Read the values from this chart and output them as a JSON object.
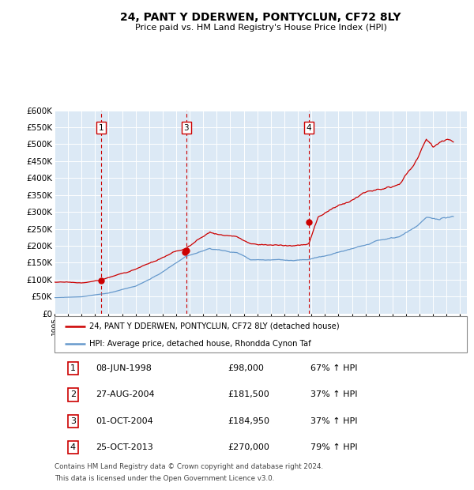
{
  "title1": "24, PANT Y DDERWEN, PONTYCLUN, CF72 8LY",
  "title2": "Price paid vs. HM Land Registry's House Price Index (HPI)",
  "background_color": "#dce9f5",
  "red_color": "#cc0000",
  "blue_color": "#6699cc",
  "ylim": [
    0,
    600000
  ],
  "yticks": [
    0,
    50000,
    100000,
    150000,
    200000,
    250000,
    300000,
    350000,
    400000,
    450000,
    500000,
    550000,
    600000
  ],
  "xmin": 1995.0,
  "xmax": 2025.5,
  "sale_lines": [
    {
      "num": "1",
      "year": 1998.44
    },
    {
      "num": "3",
      "year": 2004.75
    },
    {
      "num": "4",
      "year": 2013.81
    }
  ],
  "sales": [
    {
      "num": 1,
      "year": 1998.44,
      "price": 98000
    },
    {
      "num": 2,
      "year": 2004.65,
      "price": 181500
    },
    {
      "num": 3,
      "year": 2004.75,
      "price": 184950
    },
    {
      "num": 4,
      "year": 2013.81,
      "price": 270000
    }
  ],
  "legend_entries": [
    "24, PANT Y DDERWEN, PONTYCLUN, CF72 8LY (detached house)",
    "HPI: Average price, detached house, Rhondda Cynon Taf"
  ],
  "table": [
    {
      "num": "1",
      "date": "08-JUN-1998",
      "price": "£98,000",
      "hpi": "67% ↑ HPI"
    },
    {
      "num": "2",
      "date": "27-AUG-2004",
      "price": "£181,500",
      "hpi": "37% ↑ HPI"
    },
    {
      "num": "3",
      "date": "01-OCT-2004",
      "price": "£184,950",
      "hpi": "37% ↑ HPI"
    },
    {
      "num": "4",
      "date": "25-OCT-2013",
      "price": "£270,000",
      "hpi": "79% ↑ HPI"
    }
  ],
  "footnote1": "Contains HM Land Registry data © Crown copyright and database right 2024.",
  "footnote2": "This data is licensed under the Open Government Licence v3.0."
}
